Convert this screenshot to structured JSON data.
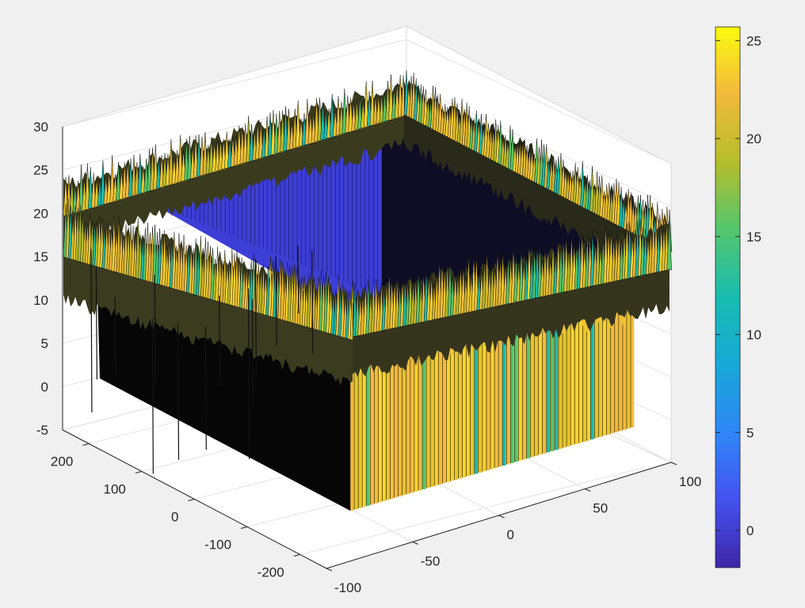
{
  "chart_data": {
    "type": "surface3d",
    "title": "",
    "xlabel": "",
    "ylabel": "",
    "zlabel": "",
    "grid": true,
    "colormap": "parula",
    "colorbar": {
      "position": "right",
      "range": [
        -1.9,
        25.7
      ],
      "ticks": [
        0,
        5,
        10,
        15,
        20,
        25
      ],
      "tick_labels": [
        "0",
        "5",
        "10",
        "15",
        "20",
        "25"
      ]
    },
    "axes": {
      "x": {
        "range": [
          -100,
          100
        ],
        "ticks": [
          -100,
          -50,
          0,
          50,
          100
        ],
        "tick_labels": [
          "-100",
          "-50",
          "0",
          "50",
          "100"
        ]
      },
      "y": {
        "range": [
          -250,
          250
        ],
        "ticks": [
          -200,
          -100,
          0,
          100,
          200
        ],
        "tick_labels": [
          "-200",
          "-100",
          "0",
          "100",
          "200"
        ]
      },
      "z": {
        "range": [
          -5,
          30
        ],
        "ticks": [
          -5,
          0,
          5,
          10,
          15,
          20,
          25,
          30
        ],
        "tick_labels": [
          "-5",
          "0",
          "5",
          "10",
          "15",
          "20",
          "25",
          "30"
        ]
      }
    },
    "surface": {
      "description_values": {
        "inner_plateau_region": {
          "x": [
            -60,
            60
          ],
          "y": [
            -200,
            200
          ],
          "z": -2
        },
        "outer_ring_level_approx": 20,
        "noise_amplitude_approx": 6,
        "floor_z": 0
      }
    },
    "colors": {
      "bg": "#f0f0f0",
      "axes_bg": "#ffffff",
      "grid": "#e3e3e3",
      "axis_line": "#262626",
      "low": "#3e26a8",
      "high": "#f9fb0e"
    }
  }
}
